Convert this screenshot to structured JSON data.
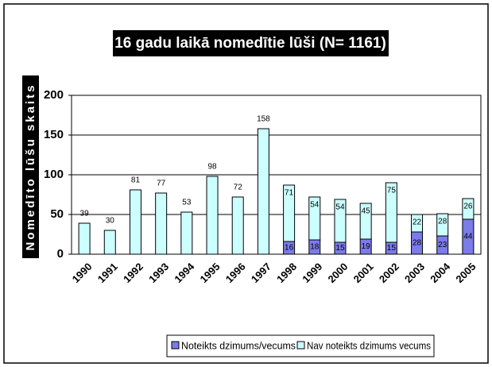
{
  "chart_data": {
    "type": "stacked_bar",
    "title": "16 gadu laikā nomedītie lūši (N= 1161)",
    "y_label": "Nomedīto lūšu skaits",
    "categories": [
      "1990",
      "1991",
      "1992",
      "1993",
      "1994",
      "1995",
      "1996",
      "1997",
      "1998",
      "1999",
      "2000",
      "2001",
      "2002",
      "2003",
      "2004",
      "2005"
    ],
    "series": [
      {
        "name": "Noteikts dzimums/vecums",
        "color": "#7b7bea",
        "values": [
          null,
          null,
          null,
          null,
          null,
          null,
          null,
          null,
          16,
          18,
          15,
          19,
          15,
          28,
          23,
          44
        ]
      },
      {
        "name": "Nav noteikts dzimums vecums",
        "color": "#ccffff",
        "values": [
          39,
          30,
          81,
          77,
          53,
          98,
          72,
          158,
          71,
          54,
          54,
          45,
          75,
          22,
          28,
          26
        ]
      }
    ],
    "ylim": [
      0,
      200
    ],
    "yticks": [
      0,
      50,
      100,
      150,
      200
    ],
    "grid": true,
    "legend": "bottom"
  }
}
